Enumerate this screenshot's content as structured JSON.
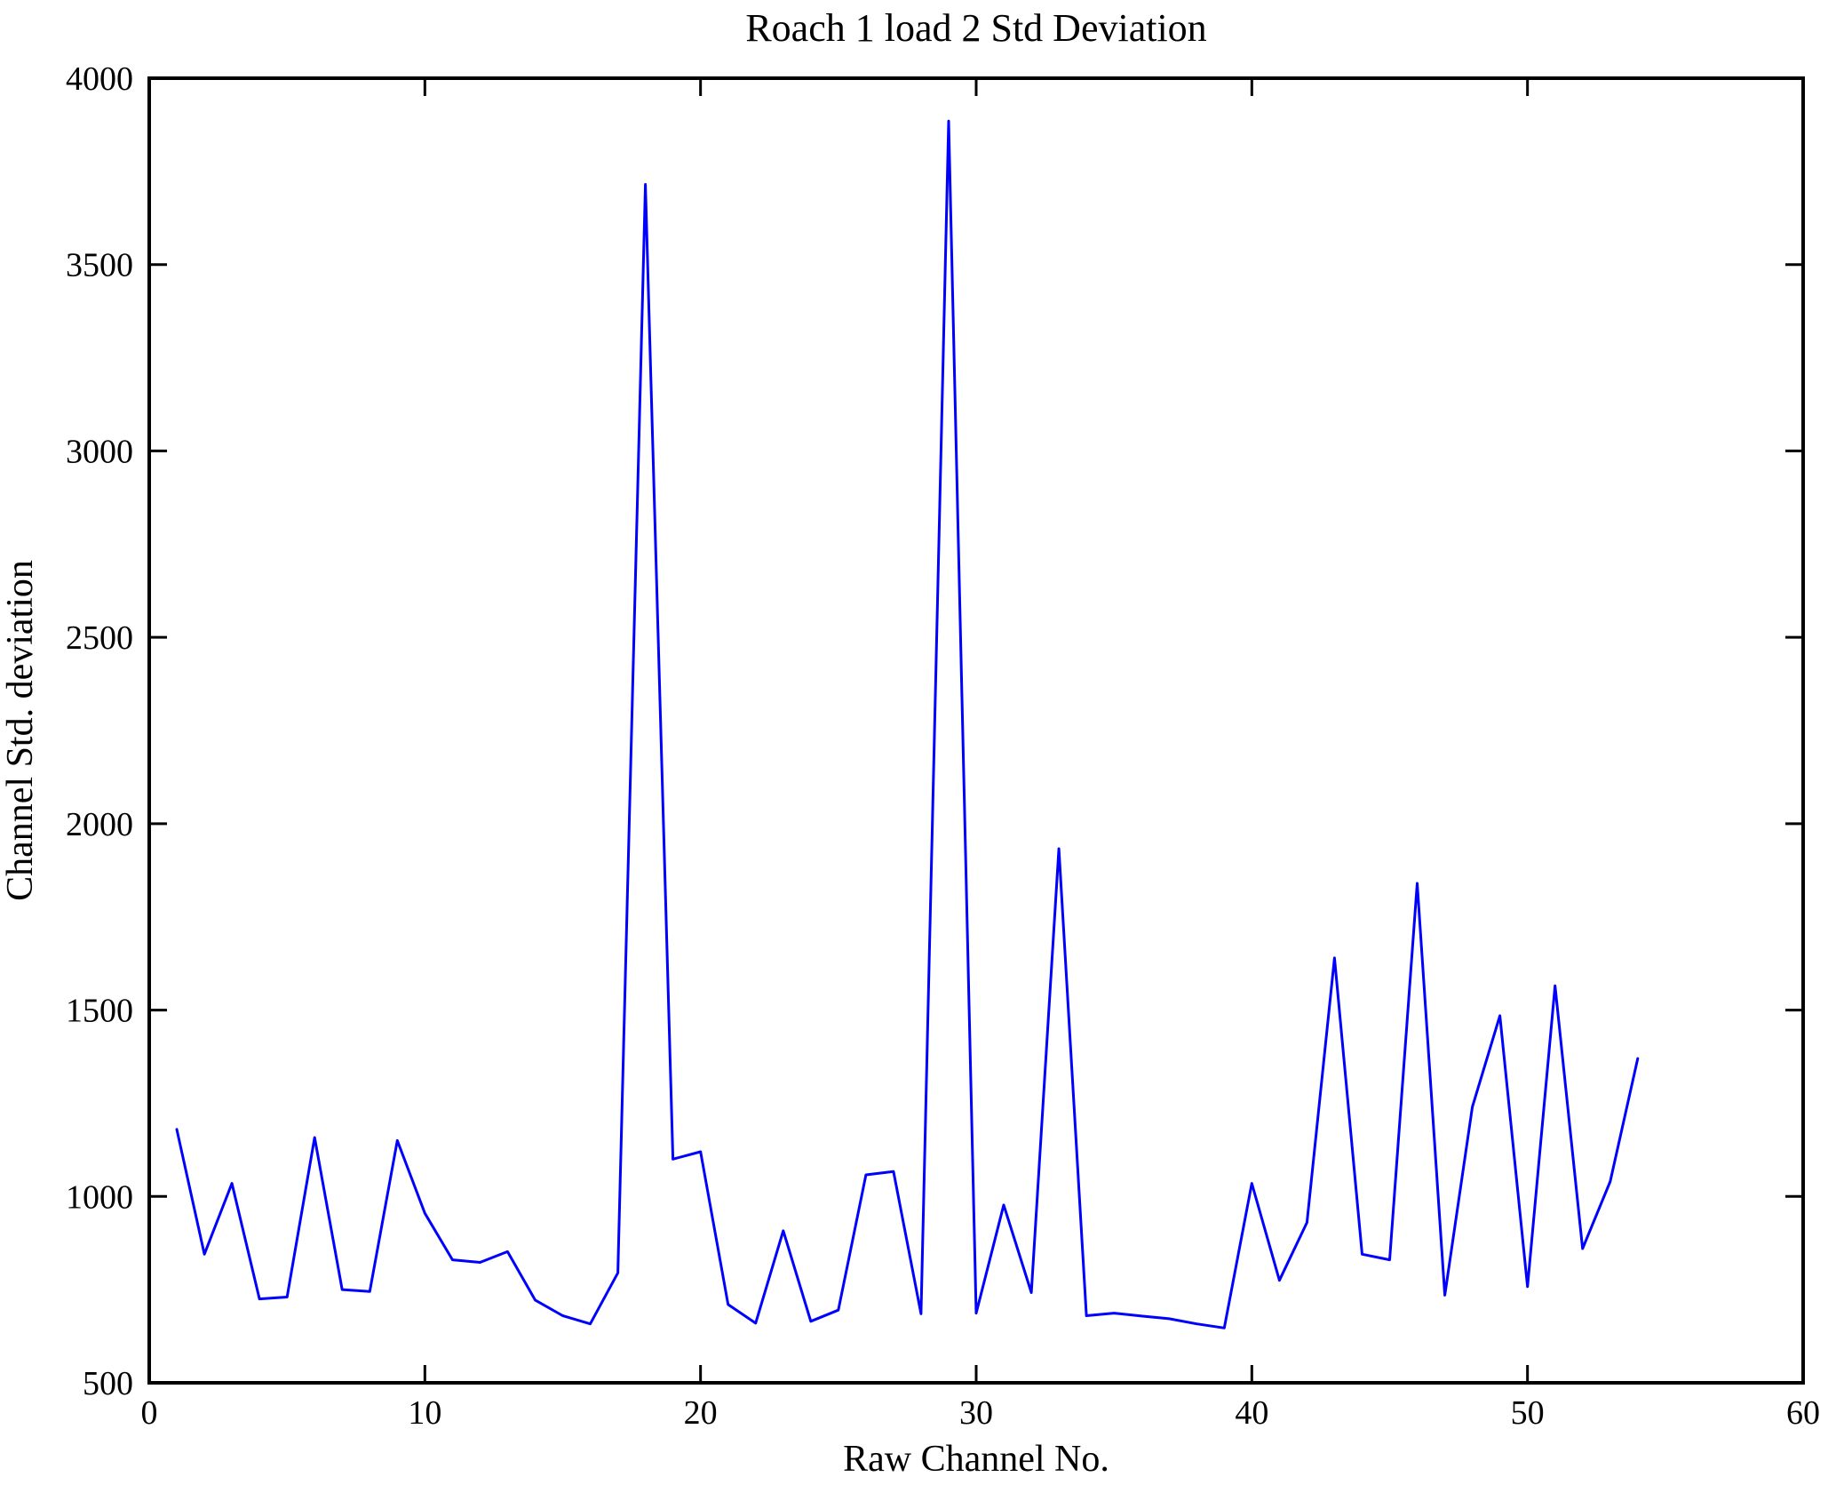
{
  "figure": {
    "title": "Roach 1 load 2 Std Deviation",
    "xlabel": "Raw Channel No.",
    "ylabel": "Channel Std. deviation"
  },
  "chart_data": {
    "type": "line",
    "title": "Roach 1 load 2 Std Deviation",
    "xlabel": "Raw Channel No.",
    "ylabel": "Channel Std. deviation",
    "x": [
      1,
      2,
      3,
      4,
      5,
      6,
      7,
      8,
      9,
      10,
      11,
      12,
      13,
      14,
      15,
      16,
      17,
      18,
      19,
      20,
      21,
      22,
      23,
      24,
      25,
      26,
      27,
      28,
      29,
      30,
      31,
      32,
      33,
      34,
      35,
      36,
      37,
      38,
      39,
      40,
      41,
      42,
      43,
      44,
      45,
      46,
      47,
      48,
      49,
      50,
      51,
      52,
      53,
      54
    ],
    "values": [
      1180,
      845,
      1035,
      725,
      730,
      1158,
      750,
      745,
      1150,
      955,
      830,
      823,
      852,
      722,
      680,
      658,
      795,
      3715,
      1100,
      1120,
      710,
      660,
      908,
      665,
      695,
      1058,
      1067,
      685,
      3885,
      687,
      977,
      742,
      1933,
      680,
      687,
      679,
      672,
      658,
      647,
      1035,
      775,
      930,
      1640,
      845,
      830,
      1840,
      735,
      1240,
      1485,
      758,
      1565,
      860,
      1040,
      1370
    ],
    "xlim": [
      0,
      60
    ],
    "ylim": [
      500,
      4000
    ],
    "xticks": [
      0,
      10,
      20,
      30,
      40,
      50,
      60
    ],
    "yticks": [
      500,
      1000,
      1500,
      2000,
      2500,
      3000,
      3500,
      4000
    ],
    "grid": false,
    "legend_position": "none",
    "line_color": "#0000ff",
    "axis_color": "#000000",
    "background_color": "#ffffff"
  }
}
